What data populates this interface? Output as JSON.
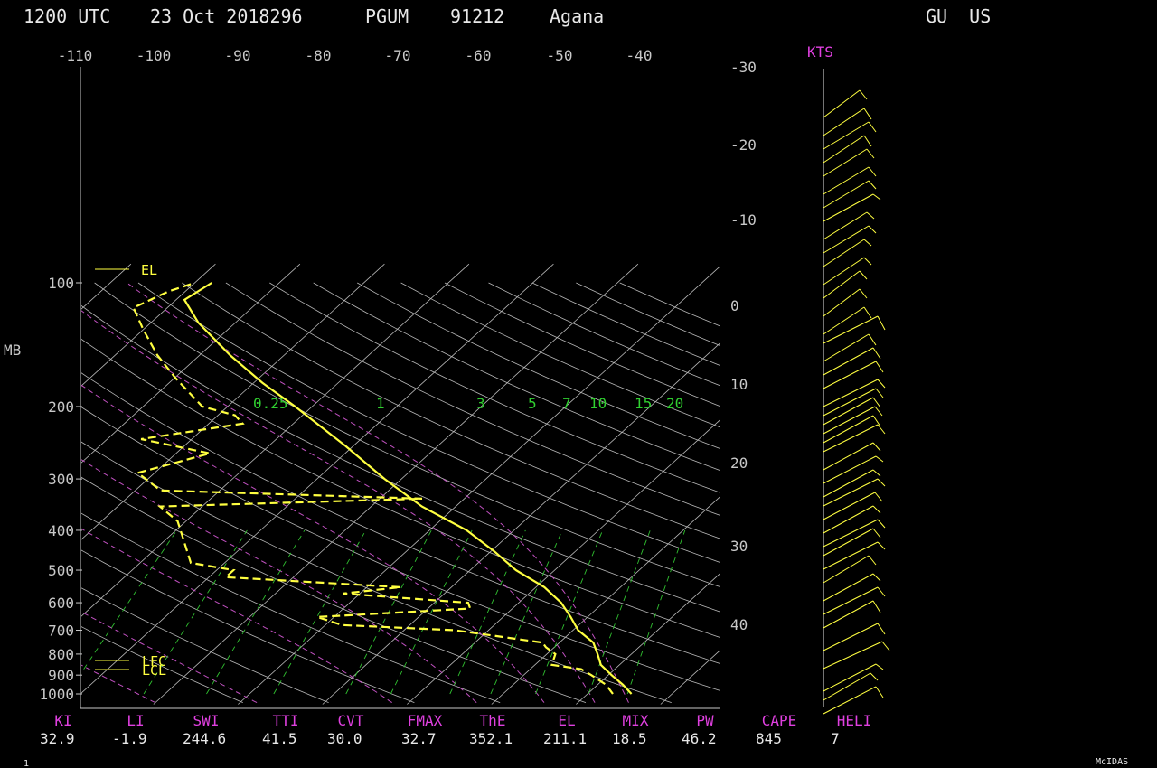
{
  "header": {
    "time": "1200 UTC",
    "date": "23 Oct 2018296",
    "station": "PGUM",
    "station_id": "91212",
    "name": "Agana",
    "region": "GU  US"
  },
  "footer": {
    "page": "1",
    "brand": "McIDAS"
  },
  "colors": {
    "temperature": "#ffff40",
    "dewpoint": "#ffff40",
    "adiabats": "#c060c0",
    "mixing": "#30d030",
    "grid": "#c8c8c8",
    "labels": "#e040e0"
  },
  "chart_data": {
    "type": "line",
    "title": "",
    "ylabel": "MB",
    "wind_label": "KTS",
    "pressure_ticks": [
      "100",
      "200",
      "300",
      "400",
      "500",
      "600",
      "700",
      "800",
      "900",
      "1000"
    ],
    "pressure_values": [
      100,
      200,
      300,
      400,
      500,
      600,
      700,
      800,
      900,
      1000
    ],
    "top_temp_ticks": [
      "-110",
      "-100",
      "-90",
      "-80",
      "-70",
      "-60",
      "-50",
      "-40"
    ],
    "right_temp_ticks": [
      "-30",
      "-20",
      "-10",
      "0",
      "10",
      "20",
      "30",
      "40"
    ],
    "mixing_labels": [
      "0.25",
      "1",
      "3",
      "5",
      "7",
      "10",
      "15",
      "20"
    ],
    "level_labels": [
      "EL",
      "LFC",
      "LCL"
    ],
    "temperature_profile": [
      [
        1000,
        25.2
      ],
      [
        950,
        23.0
      ],
      [
        900,
        20.4
      ],
      [
        850,
        17.8
      ],
      [
        800,
        16.0
      ],
      [
        750,
        14.0
      ],
      [
        700,
        10.6
      ],
      [
        650,
        8.0
      ],
      [
        600,
        5.0
      ],
      [
        550,
        1.0
      ],
      [
        500,
        -4.6
      ],
      [
        450,
        -9.6
      ],
      [
        400,
        -15.6
      ],
      [
        350,
        -24.0
      ],
      [
        300,
        -32.0
      ],
      [
        250,
        -40.8
      ],
      [
        200,
        -52.0
      ],
      [
        175,
        -59.0
      ],
      [
        150,
        -66.4
      ],
      [
        125,
        -74.4
      ],
      [
        110,
        -79.0
      ],
      [
        100,
        -78.0
      ]
    ],
    "dewpoint_profile": [
      [
        1000,
        23.0
      ],
      [
        950,
        21.0
      ],
      [
        900,
        18.0
      ],
      [
        870,
        16.0
      ],
      [
        850,
        12.0
      ],
      [
        800,
        11.0
      ],
      [
        770,
        9.0
      ],
      [
        750,
        8.0
      ],
      [
        700,
        -4.0
      ],
      [
        680,
        -18.0
      ],
      [
        650,
        -22.0
      ],
      [
        620,
        -5.0
      ],
      [
        600,
        -6.0
      ],
      [
        570,
        -22.0
      ],
      [
        550,
        -16.0
      ],
      [
        520,
        -38.0
      ],
      [
        500,
        -38.0
      ],
      [
        480,
        -44.0
      ],
      [
        420,
        -48.0
      ],
      [
        380,
        -51.0
      ],
      [
        350,
        -55.0
      ],
      [
        335,
        -25.0
      ],
      [
        320,
        -57.0
      ],
      [
        290,
        -62.0
      ],
      [
        260,
        -56.0
      ],
      [
        240,
        -66.0
      ],
      [
        220,
        -56.0
      ],
      [
        210,
        -58.0
      ],
      [
        200,
        -63.0
      ],
      [
        170,
        -70.0
      ],
      [
        150,
        -75.0
      ],
      [
        130,
        -80.0
      ],
      [
        115,
        -84.0
      ],
      [
        105,
        -82.0
      ],
      [
        100,
        -80.0
      ]
    ],
    "indices": [
      {
        "label": "KI",
        "value": "32.9"
      },
      {
        "label": "LI",
        "value": "-1.9"
      },
      {
        "label": "SWI",
        "value": "244.6"
      },
      {
        "label": "TTI",
        "value": "41.5"
      },
      {
        "label": "CVT",
        "value": "30.0"
      },
      {
        "label": "FMAX",
        "value": "32.7"
      },
      {
        "label": "ThE",
        "value": "352.1"
      },
      {
        "label": "EL",
        "value": "211.1"
      },
      {
        "label": "MIX",
        "value": "18.5"
      },
      {
        "label": "PW",
        "value": "46.2"
      },
      {
        "label": "CAPE",
        "value": "845"
      },
      {
        "label": "HELI",
        "value": "7"
      }
    ]
  }
}
